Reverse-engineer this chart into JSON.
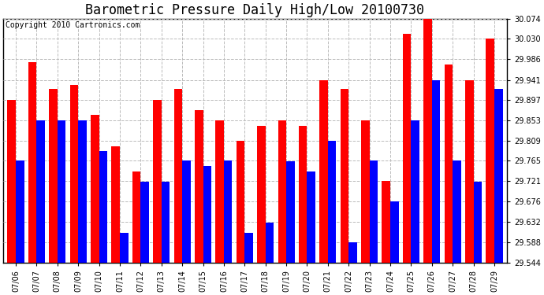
{
  "title": "Barometric Pressure Daily High/Low 20100730",
  "copyright": "Copyright 2010 Cartronics.com",
  "dates": [
    "07/06",
    "07/07",
    "07/08",
    "07/09",
    "07/10",
    "07/11",
    "07/12",
    "07/13",
    "07/14",
    "07/15",
    "07/16",
    "07/17",
    "07/18",
    "07/19",
    "07/20",
    "07/21",
    "07/22",
    "07/23",
    "07/24",
    "07/25",
    "07/26",
    "07/27",
    "07/28",
    "07/29"
  ],
  "highs": [
    29.897,
    29.98,
    29.921,
    29.93,
    29.865,
    29.797,
    29.742,
    29.897,
    29.921,
    29.875,
    29.853,
    29.809,
    29.841,
    29.853,
    29.841,
    29.941,
    29.921,
    29.853,
    29.721,
    30.041,
    30.074,
    29.975,
    29.941,
    30.03
  ],
  "lows": [
    29.765,
    29.853,
    29.853,
    29.853,
    29.786,
    29.609,
    29.72,
    29.72,
    29.765,
    29.753,
    29.765,
    29.609,
    29.631,
    29.764,
    29.742,
    29.808,
    29.588,
    29.765,
    29.676,
    29.853,
    29.941,
    29.765,
    29.72,
    29.921
  ],
  "ylim_min": 29.544,
  "ylim_max": 30.074,
  "yticks": [
    29.544,
    29.588,
    29.632,
    29.676,
    29.721,
    29.765,
    29.809,
    29.853,
    29.897,
    29.941,
    29.986,
    30.03,
    30.074
  ],
  "bar_color_high": "#FF0000",
  "bar_color_low": "#0000FF",
  "background_color": "#FFFFFF",
  "grid_color": "#BBBBBB",
  "title_fontsize": 12,
  "copyright_fontsize": 7,
  "tick_fontsize": 7,
  "bar_width": 0.4
}
